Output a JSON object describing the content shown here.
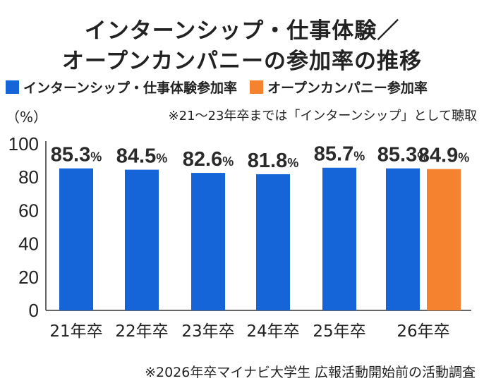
{
  "chart_data": {
    "type": "bar",
    "title_lines": [
      "インターンシップ・仕事体験／",
      "オープンカンパニーの参加率の推移"
    ],
    "legend": [
      {
        "label": "インターンシップ・仕事体験参加率",
        "color": "#1565d8"
      },
      {
        "label": "オープンカンパニー参加率",
        "color": "#f5822e"
      }
    ],
    "ylabel": "（%）",
    "ylim": [
      0,
      100
    ],
    "yticks": [
      0,
      20,
      40,
      60,
      80,
      100
    ],
    "grid": false,
    "categories": [
      "21年卒",
      "22年卒",
      "23年卒",
      "24年卒",
      "25年卒",
      "26年卒"
    ],
    "series": [
      {
        "name": "インターンシップ・仕事体験参加率",
        "color": "#1565d8",
        "values": [
          85.3,
          84.5,
          82.6,
          81.8,
          85.7,
          85.3
        ]
      },
      {
        "name": "オープンカンパニー参加率",
        "color": "#f5822e",
        "values": [
          null,
          null,
          null,
          null,
          null,
          84.9
        ]
      }
    ],
    "value_suffix": "%",
    "note": "※21～23年卒までは「インターンシップ」として聴取",
    "source": "※2026年卒マイナビ大学生 広報活動開始前の活動調査"
  }
}
